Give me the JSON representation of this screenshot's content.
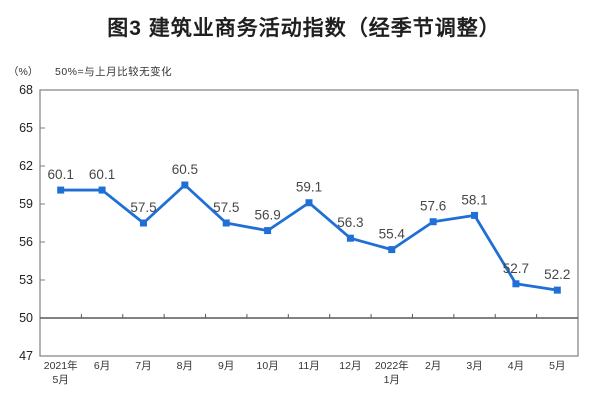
{
  "title": "图3 建筑业商务活动指数（经季节调整）",
  "unit_label": "（%）",
  "axis_note": "50%=与上月比较无变化",
  "colors": {
    "line": "#1f6fd6",
    "marker": "#1f6fd6",
    "plot_border": "#7f7f7f",
    "reference_line": "#595959",
    "data_label_text": "#474747",
    "axis_text": "#333333",
    "ytick_text": "#222222"
  },
  "chart_data": {
    "type": "line",
    "title": "图3 建筑业商务活动指数（经季节调整）",
    "unit": "（%）",
    "note": "50%=与上月比较无变化",
    "categories": [
      [
        "2021年",
        "5月"
      ],
      [
        "6月"
      ],
      [
        "7月"
      ],
      [
        "8月"
      ],
      [
        "9月"
      ],
      [
        "10月"
      ],
      [
        "11月"
      ],
      [
        "12月"
      ],
      [
        "2022年",
        "1月"
      ],
      [
        "2月"
      ],
      [
        "3月"
      ],
      [
        "4月"
      ],
      [
        "5月"
      ]
    ],
    "values": [
      60.1,
      60.1,
      57.5,
      60.5,
      57.5,
      56.9,
      59.1,
      56.3,
      55.4,
      57.6,
      58.1,
      52.7,
      52.2
    ],
    "ylim": [
      47,
      68
    ],
    "ytick_step": 3,
    "yticks": [
      47,
      50,
      53,
      56,
      59,
      62,
      65,
      68
    ],
    "reference_line": 50,
    "data_labels": true,
    "grid": false,
    "legend": "none"
  }
}
